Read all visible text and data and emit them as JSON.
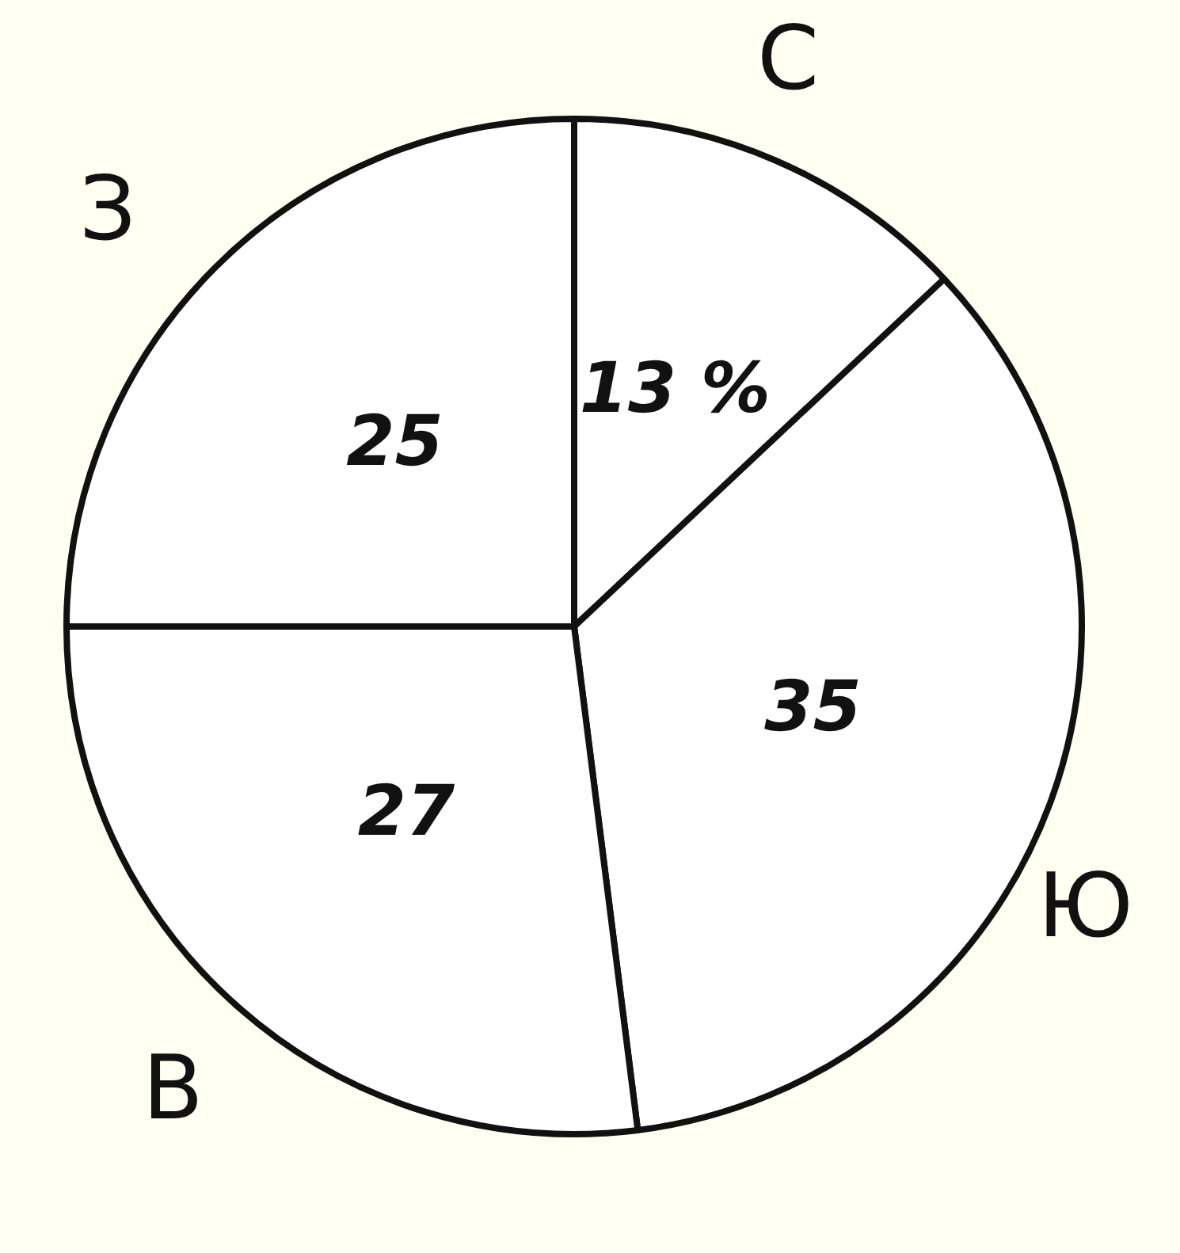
{
  "chart_data": {
    "type": "pie",
    "categories": [
      null,
      null,
      null,
      null
    ],
    "values": [
      13,
      35,
      27,
      25
    ],
    "value_labels": [
      "13 %",
      "35",
      "27",
      "25"
    ],
    "colors": [
      "#ffffff",
      "#ffffff",
      "#ffffff",
      "#ffffff"
    ],
    "annotations": [
      "С",
      "Ю",
      "З",
      "В"
    ],
    "legend": false
  }
}
